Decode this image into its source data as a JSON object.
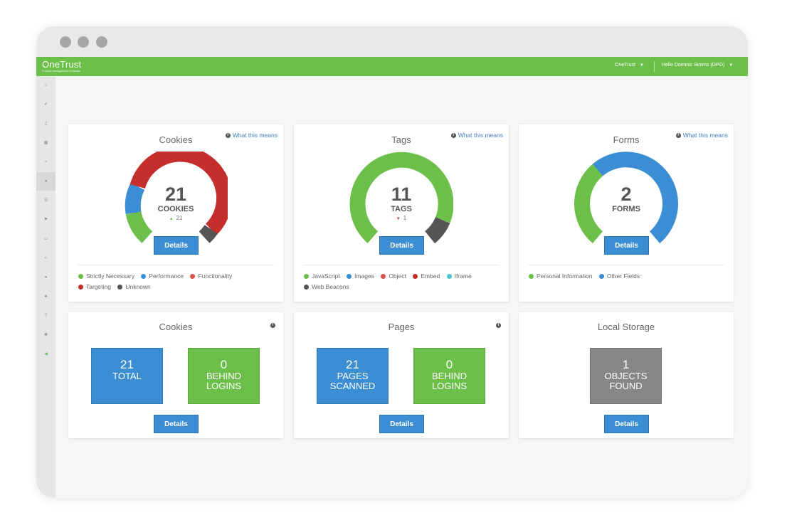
{
  "app": {
    "brand": "OneTrust",
    "brand_sub": "Privacy Management Software",
    "org_menu": "OneTrust",
    "user_menu": "Hello Dominic Simms (DPO)"
  },
  "sidebar": {
    "icons": [
      "home-icon",
      "check-icon",
      "document-icon",
      "grid-icon",
      "dashboard-icon",
      "globe-icon",
      "list-icon",
      "flag-icon",
      "folder-icon",
      "code-icon",
      "user-icon",
      "group-icon",
      "help-icon",
      "settings-icon",
      "megaphone-icon"
    ]
  },
  "cards": {
    "cookies": {
      "title": "Cookies",
      "what": "What this means",
      "number": "21",
      "unit": "COOKIES",
      "delta": "21",
      "details": "Details",
      "legend": [
        {
          "label": "Strictly Necessary",
          "color": "#6cc04a"
        },
        {
          "label": "Performance",
          "color": "#3b8ed3"
        },
        {
          "label": "Functionality",
          "color": "#d9534f"
        },
        {
          "label": "Targeting",
          "color": "#c62e2d"
        },
        {
          "label": "Unknown",
          "color": "#555555"
        }
      ]
    },
    "tags": {
      "title": "Tags",
      "what": "What this means",
      "number": "11",
      "unit": "TAGS",
      "delta": "1",
      "details": "Details",
      "legend": [
        {
          "label": "JavaScript",
          "color": "#6cc04a"
        },
        {
          "label": "Images",
          "color": "#3b8ed3"
        },
        {
          "label": "Object",
          "color": "#d9534f"
        },
        {
          "label": "Embed",
          "color": "#c62e2d"
        },
        {
          "label": "Iframe",
          "color": "#4fc1c9"
        },
        {
          "label": "Web Beacons",
          "color": "#555555"
        }
      ]
    },
    "forms": {
      "title": "Forms",
      "what": "What this means",
      "number": "2",
      "unit": "FORMS",
      "details": "Details",
      "legend": [
        {
          "label": "Personal Information",
          "color": "#6cc04a"
        },
        {
          "label": "Other Fields",
          "color": "#3b8ed3"
        }
      ]
    },
    "cookies_summary": {
      "title": "Cookies",
      "details": "Details",
      "tiles": [
        {
          "number": "21",
          "label1": "TOTAL",
          "label2": "",
          "color": "#3b8ed3"
        },
        {
          "number": "0",
          "label1": "BEHIND",
          "label2": "LOGINS",
          "color": "#6cc04a"
        }
      ]
    },
    "pages_summary": {
      "title": "Pages",
      "details": "Details",
      "tiles": [
        {
          "number": "21",
          "label1": "PAGES",
          "label2": "SCANNED",
          "color": "#3b8ed3"
        },
        {
          "number": "0",
          "label1": "BEHIND",
          "label2": "LOGINS",
          "color": "#6cc04a"
        }
      ]
    },
    "storage_summary": {
      "title": "Local Storage",
      "details": "Details",
      "tiles": [
        {
          "number": "1",
          "label1": "OBJECTS",
          "label2": "FOUND",
          "color": "#878787"
        }
      ]
    }
  }
}
